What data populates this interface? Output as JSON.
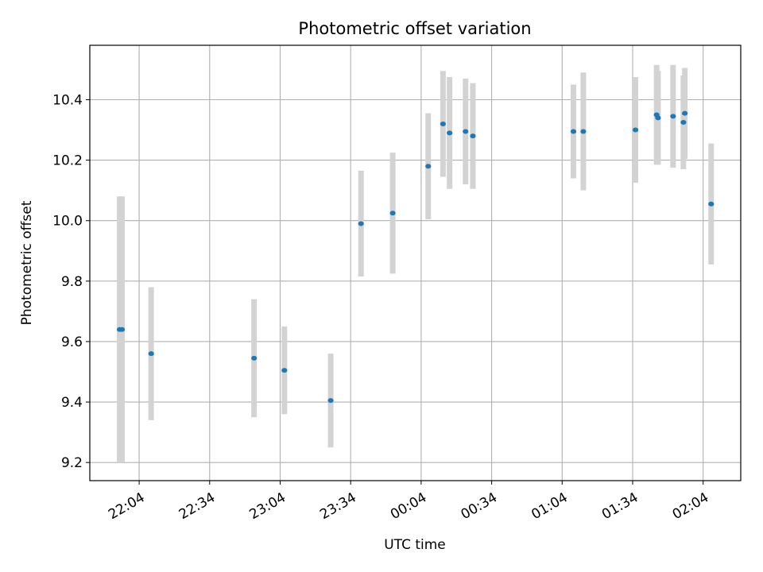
{
  "chart_data": {
    "type": "scatter",
    "title": "Photometric offset variation",
    "xlabel": "UTC time",
    "ylabel": "Photometric offset",
    "x_unit": "minutes relative to 22:04",
    "xlim": [
      -21,
      256
    ],
    "ylim": [
      9.14,
      10.58
    ],
    "grid": true,
    "x_ticks": [
      {
        "value": 0,
        "label": "22:04"
      },
      {
        "value": 30,
        "label": "22:34"
      },
      {
        "value": 60,
        "label": "23:04"
      },
      {
        "value": 90,
        "label": "23:34"
      },
      {
        "value": 120,
        "label": "00:04"
      },
      {
        "value": 150,
        "label": "00:34"
      },
      {
        "value": 180,
        "label": "01:04"
      },
      {
        "value": 210,
        "label": "01:34"
      },
      {
        "value": 240,
        "label": "02:04"
      }
    ],
    "y_ticks": [
      {
        "value": 9.2,
        "label": "9.2"
      },
      {
        "value": 9.4,
        "label": "9.4"
      },
      {
        "value": 9.6,
        "label": "9.6"
      },
      {
        "value": 9.8,
        "label": "9.8"
      },
      {
        "value": 10.0,
        "label": "10.0"
      },
      {
        "value": 10.2,
        "label": "10.2"
      },
      {
        "value": 10.4,
        "label": "10.4"
      }
    ],
    "series": [
      {
        "name": "photometric offset",
        "color": "#1f77b4",
        "errorbar_color": "#d3d3d3",
        "points": [
          {
            "x": -8.3,
            "y": 9.64,
            "err": 0.44
          },
          {
            "x": -7.3,
            "y": 9.64,
            "err": 0.44
          },
          {
            "x": 5.1,
            "y": 9.56,
            "err": 0.22
          },
          {
            "x": 48.9,
            "y": 9.545,
            "err": 0.195
          },
          {
            "x": 61.8,
            "y": 9.505,
            "err": 0.145
          },
          {
            "x": 81.5,
            "y": 9.405,
            "err": 0.155
          },
          {
            "x": 94.4,
            "y": 9.99,
            "err": 0.175
          },
          {
            "x": 107.9,
            "y": 10.025,
            "err": 0.2
          },
          {
            "x": 123.0,
            "y": 10.18,
            "err": 0.175
          },
          {
            "x": 129.3,
            "y": 10.32,
            "err": 0.175
          },
          {
            "x": 132.1,
            "y": 10.29,
            "err": 0.185
          },
          {
            "x": 138.9,
            "y": 10.295,
            "err": 0.175
          },
          {
            "x": 142.0,
            "y": 10.28,
            "err": 0.175
          },
          {
            "x": 184.8,
            "y": 10.295,
            "err": 0.155
          },
          {
            "x": 189.0,
            "y": 10.295,
            "err": 0.195
          },
          {
            "x": 211.2,
            "y": 10.3,
            "err": 0.175
          },
          {
            "x": 220.2,
            "y": 10.35,
            "err": 0.165
          },
          {
            "x": 220.8,
            "y": 10.34,
            "err": 0.155
          },
          {
            "x": 227.2,
            "y": 10.345,
            "err": 0.17
          },
          {
            "x": 231.6,
            "y": 10.325,
            "err": 0.155
          },
          {
            "x": 232.2,
            "y": 10.355,
            "err": 0.15
          },
          {
            "x": 243.4,
            "y": 10.055,
            "err": 0.2
          }
        ]
      }
    ]
  }
}
